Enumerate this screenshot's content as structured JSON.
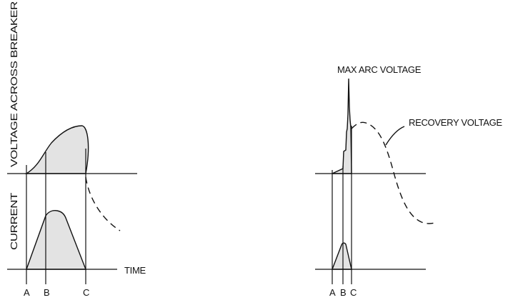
{
  "left_panel": {
    "ylabel_voltage": "VOLTAGE ACROSS BREAKER",
    "ylabel_current": "CURRENT",
    "time_label": "TIME",
    "markers": [
      "A",
      "B",
      "C"
    ]
  },
  "right_panel": {
    "max_arc_label": "MAX ARC VOLTAGE",
    "recovery_label": "RECOVERY VOLTAGE",
    "markers": [
      "A",
      "B",
      "C"
    ]
  },
  "colors": {
    "ink": "#111111",
    "shade": "#e3e3e3"
  }
}
